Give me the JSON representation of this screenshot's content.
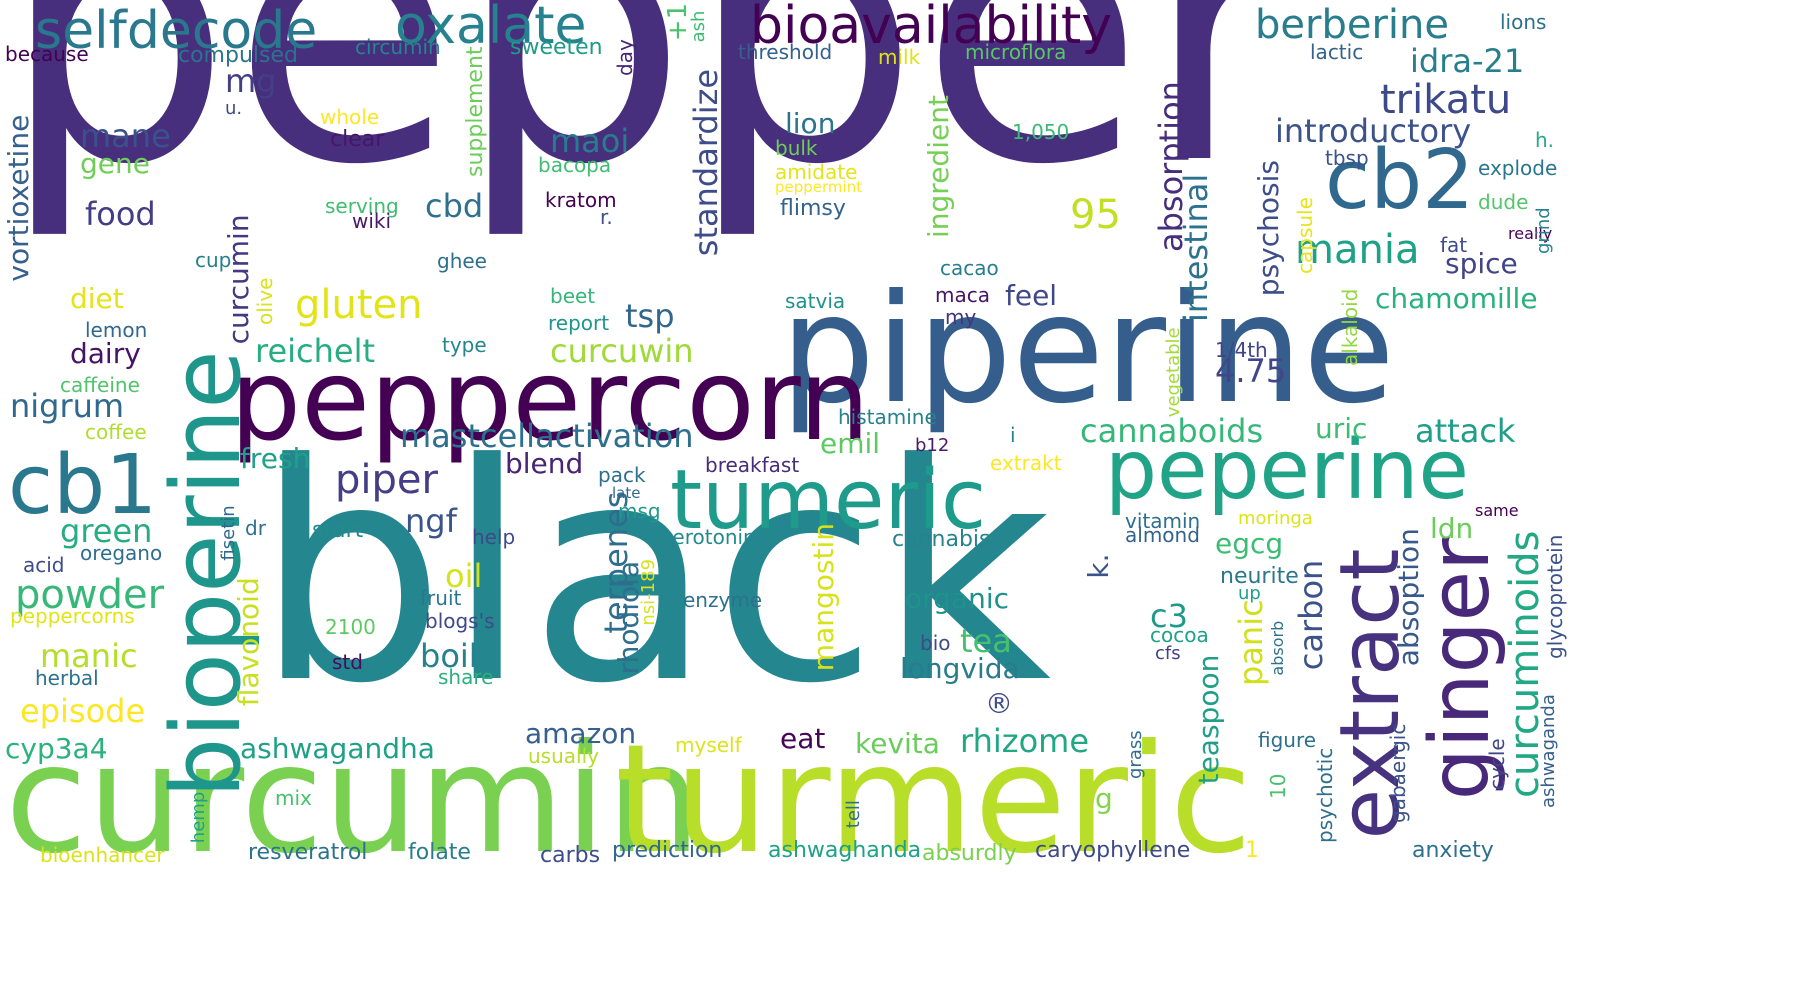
{
  "words": [
    {
      "text": "pepper",
      "color": "#472f7d",
      "angle": 0
    },
    {
      "text": "black",
      "color": "#24868e",
      "angle": 0
    },
    {
      "text": "curcumin",
      "color": "#7ad151",
      "angle": 0
    },
    {
      "text": "turmeric",
      "color": "#b8de29",
      "angle": 0
    },
    {
      "text": "piperine",
      "color": "#355e8d",
      "angle": 0
    },
    {
      "text": "peppercorn",
      "color": "#440154",
      "angle": 0
    },
    {
      "text": "bioperine",
      "color": "#1f968b",
      "angle": -90
    },
    {
      "text": "tumeric",
      "color": "#1e9b8a",
      "angle": 0
    },
    {
      "text": "cb1",
      "color": "#2a788e",
      "angle": 0
    },
    {
      "text": "peperine",
      "color": "#20a386",
      "angle": 0
    },
    {
      "text": "extract",
      "color": "#46327e",
      "angle": -90
    },
    {
      "text": "ginger",
      "color": "#482878",
      "angle": -90
    },
    {
      "text": "cb2",
      "color": "#31688e",
      "angle": 0
    },
    {
      "text": "bioavailability",
      "color": "#440154",
      "angle": 0
    },
    {
      "text": "selfdecode",
      "color": "#2a788e",
      "angle": 0
    },
    {
      "text": "oxalate",
      "color": "#26828e",
      "angle": 0
    },
    {
      "text": "berberine",
      "color": "#287d8e",
      "angle": 0
    },
    {
      "text": "curcuminoids",
      "color": "#22a884",
      "angle": -90
    },
    {
      "text": "trikatu",
      "color": "#3e4989",
      "angle": 0
    },
    {
      "text": "introductory",
      "color": "#3b528b",
      "angle": 0
    },
    {
      "text": "idra-21",
      "color": "#277f8e",
      "angle": 0
    },
    {
      "text": "mania",
      "color": "#1fa187",
      "angle": 0
    },
    {
      "text": "absorption",
      "color": "#472d7b",
      "angle": -90
    },
    {
      "text": "intestinal",
      "color": "#2c728e",
      "angle": -90
    },
    {
      "text": "psychosis",
      "color": "#3d4e8a",
      "angle": -90
    },
    {
      "text": "spice",
      "color": "#414487",
      "angle": 0
    },
    {
      "text": "chamomille",
      "color": "#2ab07f",
      "angle": 0
    },
    {
      "text": "standardize",
      "color": "#3e4c8a",
      "angle": -90
    },
    {
      "text": "ingredient",
      "color": "#75d054",
      "angle": -90
    },
    {
      "text": "gluten",
      "color": "#e2e418",
      "angle": 0
    },
    {
      "text": "curcumin",
      "color": "#453781",
      "angle": -90
    },
    {
      "text": "reichelt",
      "color": "#27ad81",
      "angle": 0
    },
    {
      "text": "curcuwin",
      "color": "#a0da39",
      "angle": 0
    },
    {
      "text": "mastcellactivation",
      "color": "#2d708e",
      "angle": 0
    },
    {
      "text": "nigrum",
      "color": "#31688e",
      "angle": 0
    },
    {
      "text": "piper",
      "color": "#433e85",
      "angle": 0
    },
    {
      "text": "ngf",
      "color": "#39558c",
      "angle": 0
    },
    {
      "text": "terpenes",
      "color": "#2f6c8e",
      "angle": -90
    },
    {
      "text": "cannaboids",
      "color": "#35b779",
      "angle": 0
    },
    {
      "text": "uric",
      "color": "#3fbc73",
      "angle": 0
    },
    {
      "text": "attack",
      "color": "#1f9e89",
      "angle": 0
    },
    {
      "text": "4.75",
      "color": "#404688",
      "angle": 0
    },
    {
      "text": "panic",
      "color": "#d0e11c",
      "angle": -90
    },
    {
      "text": "carbon",
      "color": "#3b528b",
      "angle": -90
    },
    {
      "text": "absoption",
      "color": "#38598c",
      "angle": -90
    },
    {
      "text": "ldn",
      "color": "#6ccd5a",
      "angle": 0
    },
    {
      "text": "egcg",
      "color": "#3dbc74",
      "angle": 0
    },
    {
      "text": "emil",
      "color": "#5ec962",
      "angle": 0
    },
    {
      "text": "fresh",
      "color": "#1fa088",
      "angle": 0
    },
    {
      "text": "green",
      "color": "#26ad81",
      "angle": 0
    },
    {
      "text": "powder",
      "color": "#37b878",
      "angle": 0
    },
    {
      "text": "manic",
      "color": "#b5de2b",
      "angle": 0
    },
    {
      "text": "episode",
      "color": "#fde725",
      "angle": 0
    },
    {
      "text": "cyp3a4",
      "color": "#2db27d",
      "angle": 0
    },
    {
      "text": "ashwagandha",
      "color": "#1fa188",
      "angle": 0
    },
    {
      "text": "flavonoid",
      "color": "#c8e020",
      "angle": -90
    },
    {
      "text": "oil",
      "color": "#d5e21a",
      "angle": 0
    },
    {
      "text": "boil",
      "color": "#26818e",
      "angle": 0
    },
    {
      "text": "rhodiola",
      "color": "#2e6e8e",
      "angle": -90
    },
    {
      "text": "mangostin",
      "color": "#d8e219",
      "angle": -90
    },
    {
      "text": "organic",
      "color": "#20928c",
      "angle": 0
    },
    {
      "text": "tea",
      "color": "#46c06f",
      "angle": 0
    },
    {
      "text": "longvida",
      "color": "#287c8e",
      "angle": 0
    },
    {
      "text": "kevita",
      "color": "#69cd5b",
      "angle": 0
    },
    {
      "text": "rhizome",
      "color": "#22a785",
      "angle": 0
    },
    {
      "text": "eat",
      "color": "#450559",
      "angle": 0
    },
    {
      "text": "amazon",
      "color": "#34618d",
      "angle": 0
    },
    {
      "text": "teaspoon",
      "color": "#1f9f88",
      "angle": -90
    },
    {
      "text": "c3",
      "color": "#1f9a8a",
      "angle": 0
    },
    {
      "text": "k.",
      "color": "#3b528b",
      "angle": -90
    },
    {
      "text": "®",
      "color": "#3e4a89",
      "angle": 0
    },
    {
      "text": "g",
      "color": "#84d44b",
      "angle": 0
    },
    {
      "text": "tsp",
      "color": "#31678e",
      "angle": 0
    },
    {
      "text": "mane",
      "color": "#3b518b",
      "angle": 0
    },
    {
      "text": "gene",
      "color": "#6ece58",
      "angle": 0
    },
    {
      "text": "food",
      "color": "#433d84",
      "angle": 0
    },
    {
      "text": "mg",
      "color": "#433e85",
      "angle": 0
    },
    {
      "text": "maoi",
      "color": "#287c8e",
      "angle": 0
    },
    {
      "text": "lion",
      "color": "#2b748e",
      "angle": 0
    },
    {
      "text": "cbd",
      "color": "#2d718e",
      "angle": 0
    },
    {
      "text": "95",
      "color": "#c2df23",
      "angle": 0
    },
    {
      "text": "feel",
      "color": "#3f4889",
      "angle": 0
    },
    {
      "text": "diet",
      "color": "#e5e419",
      "angle": 0
    },
    {
      "text": "dairy",
      "color": "#471365",
      "angle": 0
    },
    {
      "text": "blend",
      "color": "#482475",
      "angle": 0
    },
    {
      "text": "vortioxetine",
      "color": "#355f8d",
      "angle": -90
    },
    {
      "text": "because",
      "color": "#440154",
      "angle": 0
    },
    {
      "text": "compulsed",
      "color": "#2c728e",
      "angle": 0
    },
    {
      "text": "circumin",
      "color": "#25848e",
      "angle": 0
    },
    {
      "text": "sweeten",
      "color": "#1e9c89",
      "angle": 0
    },
    {
      "text": "day",
      "color": "#482576",
      "angle": -90
    },
    {
      "text": "+1",
      "color": "#4ac16d",
      "angle": -90
    },
    {
      "text": "ash",
      "color": "#3dbc74",
      "angle": -90
    },
    {
      "text": "threshold",
      "color": "#34618d",
      "angle": 0
    },
    {
      "text": "milk",
      "color": "#dde318",
      "angle": 0
    },
    {
      "text": "microflora",
      "color": "#58c765",
      "angle": 0
    },
    {
      "text": "lactic",
      "color": "#33638d",
      "angle": 0
    },
    {
      "text": "lions",
      "color": "#2e6f8e",
      "angle": 0
    },
    {
      "text": "u.",
      "color": "#3e4989",
      "angle": 0
    },
    {
      "text": "whole",
      "color": "#fde725",
      "angle": 0
    },
    {
      "text": "clear",
      "color": "#481668",
      "angle": 0
    },
    {
      "text": "supplement",
      "color": "#6ccd5a",
      "angle": -90
    },
    {
      "text": "bacopa",
      "color": "#40bd72",
      "angle": 0
    },
    {
      "text": "1,050",
      "color": "#3aba76",
      "angle": 0
    },
    {
      "text": "bulk",
      "color": "#6ece58",
      "angle": 0
    },
    {
      "text": "amidate",
      "color": "#e5e419",
      "angle": 0
    },
    {
      "text": "peppermint",
      "color": "#fde725",
      "angle": 0
    },
    {
      "text": "tbsp",
      "color": "#3b528b",
      "angle": 0
    },
    {
      "text": "capsule",
      "color": "#e7e419",
      "angle": -90
    },
    {
      "text": "h.",
      "color": "#25ab82",
      "angle": 0
    },
    {
      "text": "explode",
      "color": "#2a768e",
      "angle": 0
    },
    {
      "text": "dude",
      "color": "#54c568",
      "angle": 0
    },
    {
      "text": "really",
      "color": "#450559",
      "angle": 0
    },
    {
      "text": "grind",
      "color": "#26828e",
      "angle": -90
    },
    {
      "text": "fat",
      "color": "#3d4d8a",
      "angle": 0
    },
    {
      "text": "kratom",
      "color": "#440154",
      "angle": 0
    },
    {
      "text": "r.",
      "color": "#3b528b",
      "angle": 0
    },
    {
      "text": "serving",
      "color": "#40bd72",
      "angle": 0
    },
    {
      "text": "wiki",
      "color": "#481769",
      "angle": 0
    },
    {
      "text": "flimsy",
      "color": "#33638d",
      "angle": 0
    },
    {
      "text": "cup",
      "color": "#277f8e",
      "angle": 0
    },
    {
      "text": "olive",
      "color": "#dae319",
      "angle": -90
    },
    {
      "text": "ghee",
      "color": "#2d708e",
      "angle": 0
    },
    {
      "text": "cacao",
      "color": "#287d8e",
      "angle": 0
    },
    {
      "text": "beet",
      "color": "#34b679",
      "angle": 0
    },
    {
      "text": "report",
      "color": "#1f958b",
      "angle": 0
    },
    {
      "text": "satvia",
      "color": "#21918c",
      "angle": 0
    },
    {
      "text": "maca",
      "color": "#481467",
      "angle": 0
    },
    {
      "text": "my",
      "color": "#453581",
      "angle": 0
    },
    {
      "text": "lemon",
      "color": "#31688e",
      "angle": 0
    },
    {
      "text": "type",
      "color": "#25858e",
      "angle": 0
    },
    {
      "text": "caffeine",
      "color": "#50c46a",
      "angle": 0
    },
    {
      "text": "coffee",
      "color": "#b0dd2f",
      "angle": 0
    },
    {
      "text": "histamine",
      "color": "#26828e",
      "angle": 0
    },
    {
      "text": "i",
      "color": "#27808e",
      "angle": 0
    },
    {
      "text": "b12",
      "color": "#481b6d",
      "angle": 0
    },
    {
      "text": "1/4th",
      "color": "#404588",
      "angle": 0
    },
    {
      "text": "vegetable",
      "color": "#a5db36",
      "angle": -90
    },
    {
      "text": "alkaloid",
      "color": "#93d741",
      "angle": -90
    },
    {
      "text": "breakfast",
      "color": "#472c7a",
      "angle": 0
    },
    {
      "text": "extrakt",
      "color": "#fde725",
      "angle": 0
    },
    {
      "text": "pack",
      "color": "#2e6f8e",
      "angle": 0
    },
    {
      "text": "late",
      "color": "#31688e",
      "angle": 0
    },
    {
      "text": "msg",
      "color": "#1f9a8a",
      "angle": 0
    },
    {
      "text": "fisetin",
      "color": "#31688e",
      "angle": -90
    },
    {
      "text": "dr",
      "color": "#2d708e",
      "angle": 0
    },
    {
      "text": "start",
      "color": "#238a8d",
      "angle": 0
    },
    {
      "text": "help",
      "color": "#3e4989",
      "angle": 0
    },
    {
      "text": "oregano",
      "color": "#2e6e8e",
      "angle": 0
    },
    {
      "text": "acid",
      "color": "#3e4c8a",
      "angle": 0
    },
    {
      "text": "peppercorns",
      "color": "#e2e418",
      "angle": 0
    },
    {
      "text": "serotonin",
      "color": "#23898e",
      "angle": 0
    },
    {
      "text": "cannabis",
      "color": "#25848e",
      "angle": 0
    },
    {
      "text": "vitamin",
      "color": "#2e6e8e",
      "angle": 0
    },
    {
      "text": "almond",
      "color": "#33638d",
      "angle": 0
    },
    {
      "text": "moringa",
      "color": "#dde318",
      "angle": 0
    },
    {
      "text": "same",
      "color": "#440154",
      "angle": 0
    },
    {
      "text": "glycoprotein",
      "color": "#3b528b",
      "angle": -90
    },
    {
      "text": "neurite",
      "color": "#2a778e",
      "angle": 0
    },
    {
      "text": "up",
      "color": "#1fa088",
      "angle": 0
    },
    {
      "text": "nsi-189",
      "color": "#d8e219",
      "angle": -90
    },
    {
      "text": "fruit",
      "color": "#2a768e",
      "angle": 0
    },
    {
      "text": "blogs's",
      "color": "#3e4989",
      "angle": 0
    },
    {
      "text": "enzyme",
      "color": "#2c728e",
      "angle": 0
    },
    {
      "text": "2100",
      "color": "#5ec962",
      "angle": 0
    },
    {
      "text": "share",
      "color": "#2ab07f",
      "angle": 0
    },
    {
      "text": "std",
      "color": "#470d60",
      "angle": 0
    },
    {
      "text": "bio",
      "color": "#3e4c8a",
      "angle": 0
    },
    {
      "text": "cocoa",
      "color": "#1fa088",
      "angle": 0
    },
    {
      "text": "cfs",
      "color": "#433e85",
      "angle": 0
    },
    {
      "text": "absorb",
      "color": "#2d708e",
      "angle": -90
    },
    {
      "text": "herbal",
      "color": "#2c728e",
      "angle": 0
    },
    {
      "text": "myself",
      "color": "#dde318",
      "angle": 0
    },
    {
      "text": "usually",
      "color": "#b8de29",
      "angle": 0
    },
    {
      "text": "figure",
      "color": "#2d708e",
      "angle": 0
    },
    {
      "text": "psychotic",
      "color": "#2e6f8e",
      "angle": -90
    },
    {
      "text": "gabaergic",
      "color": "#3b528b",
      "angle": -90
    },
    {
      "text": "cycle",
      "color": "#404688",
      "angle": -90
    },
    {
      "text": "ashwaganda",
      "color": "#355f8d",
      "angle": -90
    },
    {
      "text": "grass",
      "color": "#2e6f8e",
      "angle": -90
    },
    {
      "text": "10",
      "color": "#4ac16d",
      "angle": -90
    },
    {
      "text": "tell",
      "color": "#2e6f8e",
      "angle": -90
    },
    {
      "text": "hemp",
      "color": "#1fa188",
      "angle": -90
    },
    {
      "text": "mix",
      "color": "#46c06f",
      "angle": 0
    },
    {
      "text": "bioenhancer",
      "color": "#dae319",
      "angle": 0
    },
    {
      "text": "resveratrol",
      "color": "#2c728e",
      "angle": 0
    },
    {
      "text": "folate",
      "color": "#287c8e",
      "angle": 0
    },
    {
      "text": "carbs",
      "color": "#3e4c8a",
      "angle": 0
    },
    {
      "text": "prediction",
      "color": "#31688e",
      "angle": 0
    },
    {
      "text": "ashwaghanda",
      "color": "#1fa188",
      "angle": 0
    },
    {
      "text": "absurdly",
      "color": "#7ad151",
      "angle": 0
    },
    {
      "text": "caryophyllene",
      "color": "#3e4989",
      "angle": 0
    },
    {
      "text": "1",
      "color": "#fde725",
      "angle": 0
    },
    {
      "text": "anxiety",
      "color": "#2d708e",
      "angle": 0
    }
  ]
}
